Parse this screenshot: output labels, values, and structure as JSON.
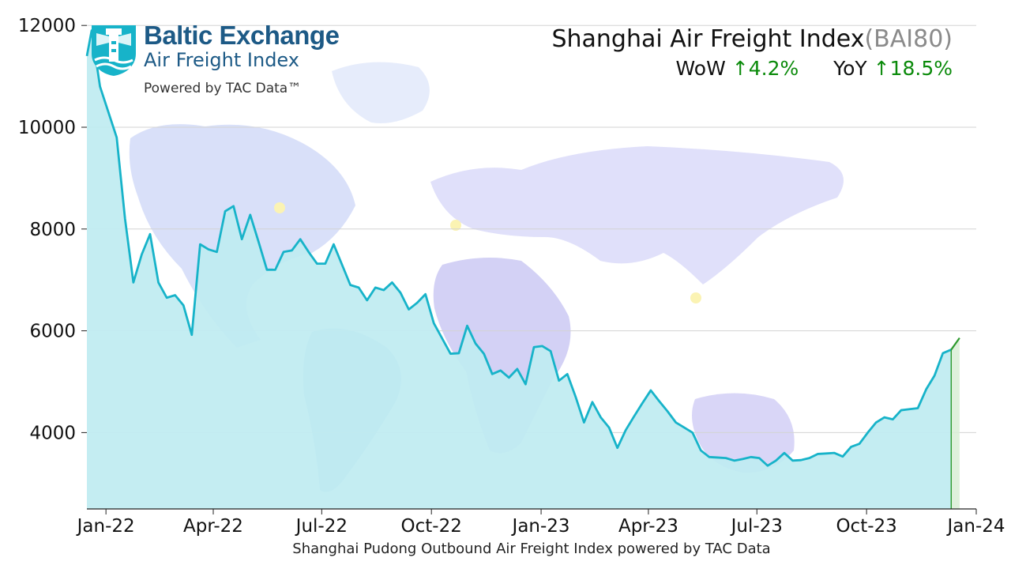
{
  "logo": {
    "line1": "Baltic Exchange",
    "line2": "Air Freight Index",
    "powered": "Powered by TAC Data™"
  },
  "header": {
    "title": "Shanghai Air Freight Index",
    "code": "(BAI80)",
    "wow_label": "WoW",
    "wow_value": "↑4.2%",
    "yoy_label": "YoY",
    "yoy_value": "↑18.5%"
  },
  "colors": {
    "line": "#17b3c9",
    "fill": "#bfecf1",
    "latest": "#2e9a2e",
    "latest_fill": "#d9eed6",
    "up": "#0a8a0a"
  },
  "chart_data": {
    "type": "area",
    "title": "Shanghai Air Freight Index(BAI80)",
    "xlabel": "Shanghai Pudong Outbound Air Freight Index powered by TAC Data",
    "ylabel": "",
    "xlim": [
      "2021-12-16",
      "2024-01-01"
    ],
    "ylim": [
      2500,
      12500
    ],
    "yticks": [
      4000,
      6000,
      8000,
      10000,
      12000
    ],
    "xticks": [
      "Jan-22",
      "Apr-22",
      "Jul-22",
      "Oct-22",
      "Jan-23",
      "Apr-23",
      "Jul-23",
      "Oct-23",
      "Jan-24"
    ],
    "grid": "horizontal",
    "series": [
      {
        "values": [
          [
            "2021-12-16",
            11400
          ],
          [
            "2021-12-20",
            11900
          ],
          [
            "2021-12-27",
            10800
          ],
          [
            "2022-01-03",
            10300
          ],
          [
            "2022-01-10",
            9800
          ],
          [
            "2022-01-17",
            8200
          ],
          [
            "2022-01-24",
            6950
          ],
          [
            "2022-01-31",
            7500
          ],
          [
            "2022-02-07",
            7900
          ],
          [
            "2022-02-14",
            6950
          ],
          [
            "2022-02-21",
            6650
          ],
          [
            "2022-02-28",
            6700
          ],
          [
            "2022-03-07",
            6500
          ],
          [
            "2022-03-14",
            5920
          ],
          [
            "2022-03-21",
            7700
          ],
          [
            "2022-03-28",
            7600
          ],
          [
            "2022-04-04",
            7550
          ],
          [
            "2022-04-11",
            8350
          ],
          [
            "2022-04-18",
            8450
          ],
          [
            "2022-04-25",
            7800
          ],
          [
            "2022-05-02",
            8280
          ],
          [
            "2022-05-09",
            7750
          ],
          [
            "2022-05-16",
            7200
          ],
          [
            "2022-05-23",
            7200
          ],
          [
            "2022-05-30",
            7550
          ],
          [
            "2022-06-06",
            7580
          ],
          [
            "2022-06-13",
            7800
          ],
          [
            "2022-06-20",
            7550
          ],
          [
            "2022-06-27",
            7320
          ],
          [
            "2022-07-04",
            7320
          ],
          [
            "2022-07-11",
            7700
          ],
          [
            "2022-07-18",
            7300
          ],
          [
            "2022-07-25",
            6900
          ],
          [
            "2022-08-01",
            6850
          ],
          [
            "2022-08-08",
            6600
          ],
          [
            "2022-08-15",
            6850
          ],
          [
            "2022-08-22",
            6800
          ],
          [
            "2022-08-29",
            6950
          ],
          [
            "2022-09-05",
            6750
          ],
          [
            "2022-09-12",
            6420
          ],
          [
            "2022-09-19",
            6550
          ],
          [
            "2022-09-26",
            6720
          ],
          [
            "2022-10-03",
            6150
          ],
          [
            "2022-10-10",
            5850
          ],
          [
            "2022-10-17",
            5550
          ],
          [
            "2022-10-24",
            5560
          ],
          [
            "2022-10-31",
            6100
          ],
          [
            "2022-11-07",
            5750
          ],
          [
            "2022-11-14",
            5550
          ],
          [
            "2022-11-21",
            5150
          ],
          [
            "2022-11-28",
            5220
          ],
          [
            "2022-12-05",
            5080
          ],
          [
            "2022-12-12",
            5250
          ],
          [
            "2022-12-19",
            4950
          ],
          [
            "2022-12-26",
            5680
          ],
          [
            "2023-01-02",
            5700
          ],
          [
            "2023-01-09",
            5600
          ],
          [
            "2023-01-16",
            5020
          ],
          [
            "2023-01-23",
            5150
          ],
          [
            "2023-01-30",
            4700
          ],
          [
            "2023-02-06",
            4200
          ],
          [
            "2023-02-13",
            4600
          ],
          [
            "2023-02-20",
            4300
          ],
          [
            "2023-02-27",
            4100
          ],
          [
            "2023-03-06",
            3700
          ],
          [
            "2023-03-13",
            4050
          ],
          [
            "2023-03-20",
            4320
          ],
          [
            "2023-03-27",
            4580
          ],
          [
            "2023-04-03",
            4830
          ],
          [
            "2023-04-10",
            4620
          ],
          [
            "2023-04-17",
            4420
          ],
          [
            "2023-04-24",
            4200
          ],
          [
            "2023-05-01",
            4100
          ],
          [
            "2023-05-08",
            4000
          ],
          [
            "2023-05-15",
            3650
          ],
          [
            "2023-05-22",
            3520
          ],
          [
            "2023-05-29",
            3510
          ],
          [
            "2023-06-05",
            3500
          ],
          [
            "2023-06-12",
            3450
          ],
          [
            "2023-06-19",
            3480
          ],
          [
            "2023-06-26",
            3520
          ],
          [
            "2023-07-03",
            3500
          ],
          [
            "2023-07-10",
            3350
          ],
          [
            "2023-07-17",
            3450
          ],
          [
            "2023-07-24",
            3600
          ],
          [
            "2023-07-31",
            3450
          ],
          [
            "2023-08-07",
            3460
          ],
          [
            "2023-08-14",
            3500
          ],
          [
            "2023-08-21",
            3580
          ],
          [
            "2023-08-28",
            3590
          ],
          [
            "2023-09-04",
            3600
          ],
          [
            "2023-09-11",
            3530
          ],
          [
            "2023-09-18",
            3720
          ],
          [
            "2023-09-25",
            3780
          ],
          [
            "2023-10-02",
            4000
          ],
          [
            "2023-10-09",
            4200
          ],
          [
            "2023-10-16",
            4300
          ],
          [
            "2023-10-23",
            4260
          ],
          [
            "2023-10-30",
            4440
          ],
          [
            "2023-11-06",
            4460
          ],
          [
            "2023-11-13",
            4480
          ],
          [
            "2023-11-20",
            4850
          ],
          [
            "2023-11-27",
            5120
          ],
          [
            "2023-12-04",
            5560
          ],
          [
            "2023-12-11",
            5630
          ]
        ]
      },
      {
        "values": [
          [
            "2023-12-11",
            5630
          ],
          [
            "2023-12-18",
            5860
          ]
        ]
      }
    ]
  }
}
